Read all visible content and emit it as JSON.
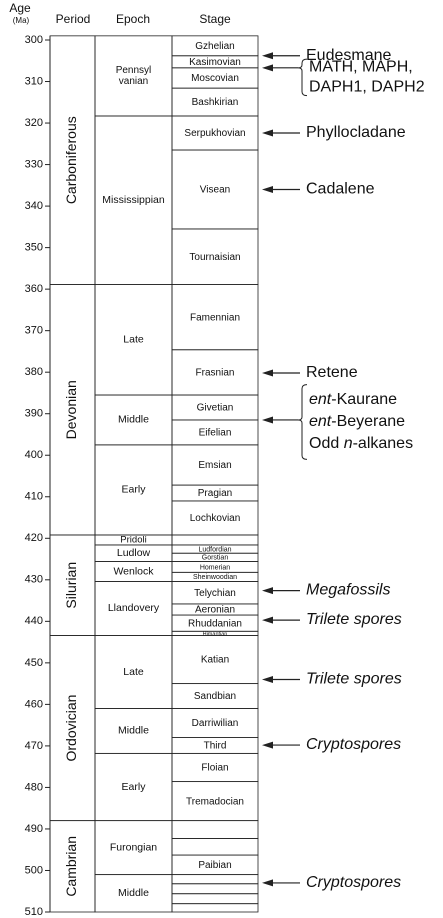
{
  "header": {
    "age": "Age",
    "unit": "(Ma)",
    "period": "Period",
    "epoch": "Epoch",
    "stage": "Stage"
  },
  "age_axis": {
    "ylim": [
      300,
      510
    ],
    "ticks": [
      300,
      310,
      320,
      330,
      340,
      350,
      360,
      370,
      380,
      390,
      400,
      410,
      420,
      430,
      440,
      450,
      460,
      470,
      480,
      490,
      500,
      510
    ]
  },
  "periods": [
    {
      "name": "Carboniferous",
      "top": 299,
      "base": 358.9
    },
    {
      "name": "Devonian",
      "top": 358.9,
      "base": 419.2
    },
    {
      "name": "Silurian",
      "top": 419.2,
      "base": 443.4
    },
    {
      "name": "Ordovician",
      "top": 443.4,
      "base": 488
    },
    {
      "name": "Cambrian",
      "top": 488,
      "base": 510
    }
  ],
  "epochs": [
    {
      "name_lines": [
        "Pennsyl",
        "vanian"
      ],
      "top": 299,
      "base": 318.3
    },
    {
      "name": "Mississippian",
      "top": 318.3,
      "base": 358.9
    },
    {
      "name": "Late",
      "top": 358.9,
      "base": 385.5
    },
    {
      "name": "Middle",
      "top": 385.5,
      "base": 397.5
    },
    {
      "name": "Early",
      "top": 397.5,
      "base": 419.2
    },
    {
      "name": "Pridoli",
      "top": 419.2,
      "base": 421.6
    },
    {
      "name": "Ludlow",
      "top": 421.6,
      "base": 425.6
    },
    {
      "name": "Wenlock",
      "top": 425.6,
      "base": 430.4
    },
    {
      "name": "Llandovery",
      "top": 430.4,
      "base": 443.4
    },
    {
      "name": "Late",
      "top": 443.4,
      "base": 461
    },
    {
      "name": "Middle",
      "top": 461,
      "base": 471.8
    },
    {
      "name": "Early",
      "top": 471.8,
      "base": 488
    },
    {
      "name": "Furongian",
      "top": 488,
      "base": 501
    },
    {
      "name": "Middle",
      "top": 501,
      "base": 510
    }
  ],
  "stages": [
    {
      "name": "Gzhelian",
      "top": 299,
      "base": 303.8
    },
    {
      "name": "Kasimovian",
      "top": 303.8,
      "base": 306.7
    },
    {
      "name": "Moscovian",
      "top": 306.7,
      "base": 311.6
    },
    {
      "name": "Bashkirian",
      "top": 311.6,
      "base": 318.3
    },
    {
      "name": "Serpukhovian",
      "top": 318.3,
      "base": 326.5
    },
    {
      "name": "Visean",
      "top": 326.5,
      "base": 345.5
    },
    {
      "name": "Tournaisian",
      "top": 345.5,
      "base": 358.9
    },
    {
      "name": "Famennian",
      "top": 358.9,
      "base": 374.6
    },
    {
      "name": "Frasnian",
      "top": 374.6,
      "base": 385.5
    },
    {
      "name": "Givetian",
      "top": 385.5,
      "base": 391.5
    },
    {
      "name": "Eifelian",
      "top": 391.5,
      "base": 397.5
    },
    {
      "name": "Emsian",
      "top": 397.5,
      "base": 407.2
    },
    {
      "name": "Pragian",
      "top": 407.2,
      "base": 411
    },
    {
      "name": "Lochkovian",
      "top": 411,
      "base": 419.2
    },
    {
      "top": 419.2,
      "base": 421.6
    },
    {
      "name": "Ludfordian",
      "top": 421.6,
      "base": 423.6
    },
    {
      "name": "Gorstian",
      "top": 423.6,
      "base": 425.6
    },
    {
      "name": "Homerian",
      "top": 425.6,
      "base": 428.2
    },
    {
      "name": "Sheinwoodian",
      "top": 428.2,
      "base": 430.4
    },
    {
      "name": "Telychian",
      "top": 430.4,
      "base": 435.8
    },
    {
      "name": "Aeronian",
      "top": 435.8,
      "base": 438.5
    },
    {
      "name": "Rhuddanian",
      "top": 438.5,
      "base": 442.4
    },
    {
      "name": "Himantian",
      "top": 442.4,
      "base": 443.4
    },
    {
      "name": "Katian",
      "top": 443.4,
      "base": 455
    },
    {
      "name": "Sandbian",
      "top": 455,
      "base": 461
    },
    {
      "name": "Darriwilian",
      "top": 461,
      "base": 468
    },
    {
      "name": "Third",
      "top": 468,
      "base": 471.8
    },
    {
      "name": "Floian",
      "top": 471.8,
      "base": 478.6
    },
    {
      "name": "Tremadocian",
      "top": 478.6,
      "base": 488
    },
    {
      "top": 488,
      "base": 492.3
    },
    {
      "top": 492.3,
      "base": 496.3
    },
    {
      "name": "Paibian",
      "top": 496.3,
      "base": 501
    },
    {
      "top": 501,
      "base": 503.2
    },
    {
      "top": 503.2,
      "base": 505.6
    },
    {
      "top": 505.6,
      "base": 508
    },
    {
      "top": 508,
      "base": 510
    }
  ],
  "annotations": [
    {
      "age": 303.8,
      "lines": [
        [
          {
            "text": "Eudesmane"
          }
        ]
      ]
    },
    {
      "age": 306.7,
      "brace": [
        304.6,
        313.4
      ],
      "lines": [
        [
          {
            "text": "MATH, MAPH,"
          }
        ],
        [
          {
            "text": "DAPH1, DAPH2"
          }
        ]
      ]
    },
    {
      "age": 322.4,
      "lines": [
        [
          {
            "text": "Phyllocladane"
          }
        ]
      ]
    },
    {
      "age": 336,
      "lines": [
        [
          {
            "text": "Cadalene"
          }
        ]
      ]
    },
    {
      "age": 380.2,
      "lines": [
        [
          {
            "text": "Retene"
          }
        ]
      ]
    },
    {
      "age": 391.5,
      "brace": [
        383,
        401
      ],
      "lines": [
        [
          {
            "text": "ent",
            "italic": true
          },
          {
            "text": "-Kaurane"
          }
        ],
        [
          {
            "text": "ent",
            "italic": true
          },
          {
            "text": "-Beyerane"
          }
        ],
        [
          {
            "text": "Odd "
          },
          {
            "text": "n",
            "italic": true
          },
          {
            "text": "-alkanes"
          }
        ]
      ]
    },
    {
      "age": 432.6,
      "lines": [
        [
          {
            "text": "Megafossils",
            "italic": true
          }
        ]
      ]
    },
    {
      "age": 439.7,
      "lines": [
        [
          {
            "text": "Trilete spores",
            "italic": true
          }
        ]
      ]
    },
    {
      "age": 454,
      "lines": [
        [
          {
            "text": "Trilete spores",
            "italic": true
          }
        ]
      ]
    },
    {
      "age": 469.8,
      "lines": [
        [
          {
            "text": "Cryptospores",
            "italic": true
          }
        ]
      ]
    },
    {
      "age": 503,
      "lines": [
        [
          {
            "text": "Cryptospores",
            "italic": true
          }
        ]
      ]
    }
  ]
}
